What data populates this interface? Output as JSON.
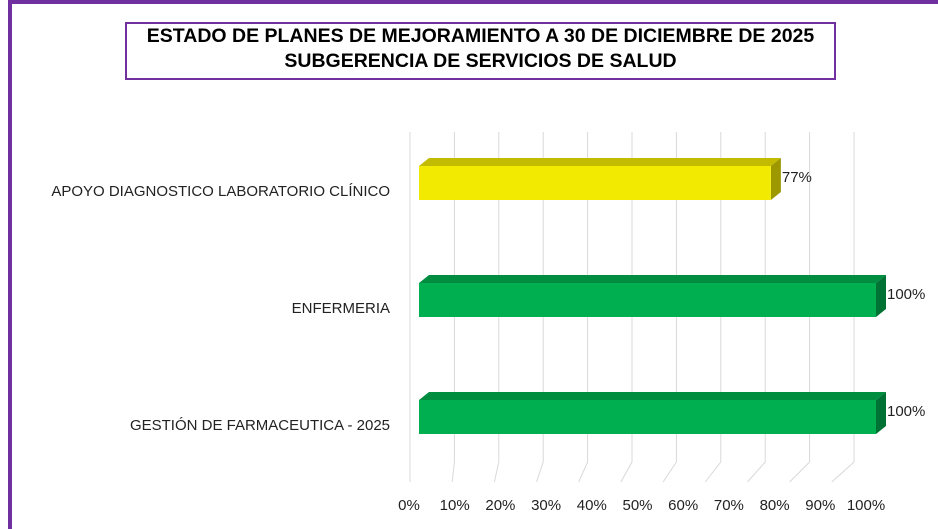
{
  "chart_data": {
    "type": "bar",
    "orientation": "horizontal",
    "title": "ESTADO DE PLANES DE MEJORAMIENTO A 30 DE DICIEMBRE DE 2025 SUBGERENCIA DE SERVICIOS DE SALUD",
    "categories": [
      "APOYO DIAGNOSTICO LABORATORIO CLÍNICO",
      "ENFERMERIA",
      "GESTIÓN DE FARMACEUTICA - 2025"
    ],
    "values": [
      77,
      100,
      100
    ],
    "value_labels": [
      "77%",
      "100%",
      "100%"
    ],
    "colors": [
      "#f2ea00",
      "#00b050",
      "#00b050"
    ],
    "xlim": [
      0,
      100
    ],
    "xticks": [
      {
        "value": 0,
        "label": "0%"
      },
      {
        "value": 10,
        "label": "10%"
      },
      {
        "value": 20,
        "label": "20%"
      },
      {
        "value": 30,
        "label": "30%"
      },
      {
        "value": 40,
        "label": "40%"
      },
      {
        "value": 50,
        "label": "50%"
      },
      {
        "value": 60,
        "label": "60%"
      },
      {
        "value": 70,
        "label": "70%"
      },
      {
        "value": 80,
        "label": "80%"
      },
      {
        "value": 90,
        "label": "90%"
      },
      {
        "value": 100,
        "label": "100%"
      }
    ],
    "grid": true
  }
}
